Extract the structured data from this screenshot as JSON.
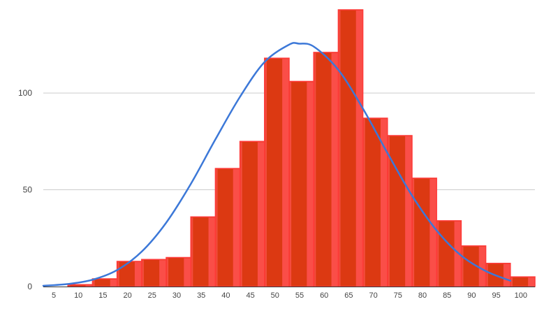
{
  "chart_data": {
    "type": "bar",
    "subtype": "histogram-with-normal-curve",
    "x_ticks": [
      "5",
      "10",
      "15",
      "20",
      "25",
      "30",
      "35",
      "40",
      "45",
      "50",
      "55",
      "60",
      "65",
      "70",
      "75",
      "80",
      "85",
      "90",
      "95",
      "100"
    ],
    "y_ticks": [
      "0",
      "50",
      "100"
    ],
    "bins": [
      {
        "from": 5,
        "to": 10,
        "value": 0
      },
      {
        "from": 10,
        "to": 15,
        "value": 1
      },
      {
        "from": 15,
        "to": 20,
        "value": 4
      },
      {
        "from": 20,
        "to": 25,
        "value": 13
      },
      {
        "from": 25,
        "to": 30,
        "value": 14
      },
      {
        "from": 30,
        "to": 35,
        "value": 15
      },
      {
        "from": 35,
        "to": 40,
        "value": 36
      },
      {
        "from": 40,
        "to": 45,
        "value": 61
      },
      {
        "from": 45,
        "to": 50,
        "value": 75
      },
      {
        "from": 50,
        "to": 55,
        "value": 118
      },
      {
        "from": 55,
        "to": 60,
        "value": 106
      },
      {
        "from": 60,
        "to": 65,
        "value": 121
      },
      {
        "from": 65,
        "to": 70,
        "value": 143
      },
      {
        "from": 70,
        "to": 75,
        "value": 87
      },
      {
        "from": 75,
        "to": 80,
        "value": 78
      },
      {
        "from": 80,
        "to": 85,
        "value": 56
      },
      {
        "from": 85,
        "to": 90,
        "value": 34
      },
      {
        "from": 90,
        "to": 95,
        "value": 21
      },
      {
        "from": 95,
        "to": 100,
        "value": 12
      },
      {
        "from": 100,
        "to": 105,
        "value": 5
      }
    ],
    "curve": {
      "points": [
        {
          "x": 5,
          "y": 0.4
        },
        {
          "x": 10,
          "y": 1.3
        },
        {
          "x": 15,
          "y": 3.5
        },
        {
          "x": 20,
          "y": 8.5
        },
        {
          "x": 25,
          "y": 18
        },
        {
          "x": 30,
          "y": 33
        },
        {
          "x": 35,
          "y": 53
        },
        {
          "x": 40,
          "y": 76
        },
        {
          "x": 45,
          "y": 98
        },
        {
          "x": 50,
          "y": 116
        },
        {
          "x": 55,
          "y": 125
        },
        {
          "x": 57,
          "y": 125.5
        },
        {
          "x": 60,
          "y": 124
        },
        {
          "x": 65,
          "y": 112
        },
        {
          "x": 70,
          "y": 92
        },
        {
          "x": 75,
          "y": 69
        },
        {
          "x": 80,
          "y": 47
        },
        {
          "x": 85,
          "y": 29
        },
        {
          "x": 90,
          "y": 16
        },
        {
          "x": 95,
          "y": 8
        },
        {
          "x": 100,
          "y": 3
        }
      ]
    },
    "xlim": [
      5,
      105
    ],
    "ylim": [
      0,
      143
    ],
    "title": "",
    "xlabel": "",
    "ylabel": "",
    "grid": true,
    "legend": "none",
    "colors": {
      "bar_fill": "#dc3912",
      "bar_stroke": "#ff3b3b",
      "bar_highlight": "#ff5252",
      "curve": "#3c78d8",
      "grid": "#cccccc",
      "axis": "#333333"
    }
  }
}
